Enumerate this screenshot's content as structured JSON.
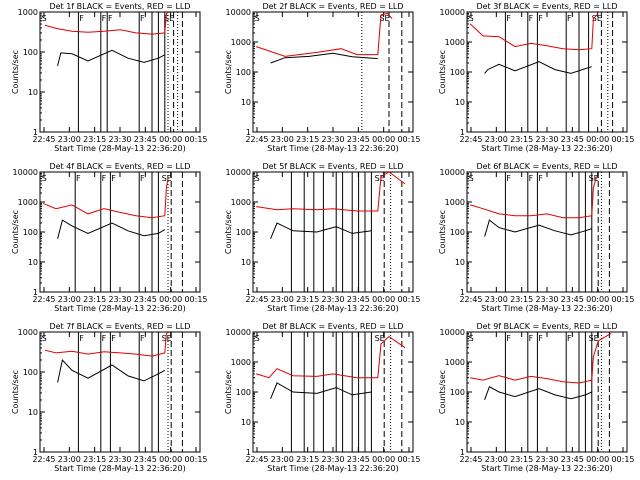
{
  "colors": {
    "events": "#000000",
    "lld": "#e00000",
    "frame": "#000000"
  },
  "chart_data": {
    "type": "line",
    "scale": "log",
    "ylim": [
      1,
      10000
    ],
    "y_ticks": [
      1,
      10,
      100,
      1000,
      10000
    ],
    "y_tick_labels": [
      "1",
      "10",
      "100",
      "1000",
      "10000"
    ],
    "x_tick_labels": [
      "22:45",
      "23:00",
      "23:15",
      "23:30",
      "23:45",
      "00:00",
      "00:15"
    ],
    "ylabel": "Counts/sec",
    "xlabel": "Start Time (28-May-13 22:36:20)",
    "panels": [
      {
        "title": "Det 1f BLACK = Events, RED = LLD",
        "ylim_top": 1000,
        "y_tick_labels": [
          "1",
          "10",
          "100",
          "1000"
        ],
        "markers": [
          "S",
          "F",
          "F",
          "F",
          "F",
          "SE"
        ],
        "solid_lines": [
          0.24,
          0.38,
          0.42,
          0.62,
          0.7,
          0.74,
          0.78
        ],
        "dashed_lines": [
          0.835,
          0.89
        ],
        "dotted_lines": [
          0.8,
          0.86
        ],
        "lld": [
          [
            0.03,
            470
          ],
          [
            0.1,
            390
          ],
          [
            0.2,
            330
          ],
          [
            0.3,
            310
          ],
          [
            0.4,
            330
          ],
          [
            0.5,
            360
          ],
          [
            0.6,
            300
          ],
          [
            0.7,
            280
          ],
          [
            0.78,
            300
          ],
          [
            0.79,
            900
          ],
          [
            0.8,
            1000
          ]
        ],
        "events": [
          [
            0.11,
            45
          ],
          [
            0.13,
            95
          ],
          [
            0.2,
            90
          ],
          [
            0.3,
            60
          ],
          [
            0.45,
            110
          ],
          [
            0.55,
            70
          ],
          [
            0.65,
            55
          ],
          [
            0.74,
            70
          ],
          [
            0.78,
            85
          ]
        ]
      },
      {
        "title": "Det 2f BLACK = Events, RED = LLD",
        "ylim_top": 10000,
        "y_tick_labels": [
          "1",
          "10",
          "100",
          "1000",
          "10000"
        ],
        "markers": [
          "S",
          "SE"
        ],
        "solid_lines": [],
        "dashed_lines": [
          0.85,
          0.93
        ],
        "dotted_lines": [
          0.68
        ],
        "lld": [
          [
            0.02,
            700
          ],
          [
            0.2,
            330
          ],
          [
            0.4,
            450
          ],
          [
            0.55,
            600
          ],
          [
            0.65,
            380
          ],
          [
            0.78,
            380
          ],
          [
            0.8,
            8000
          ],
          [
            0.84,
            9000
          ],
          [
            0.87,
            6000
          ]
        ],
        "events": [
          [
            0.11,
            200
          ],
          [
            0.2,
            300
          ],
          [
            0.35,
            330
          ],
          [
            0.5,
            420
          ],
          [
            0.62,
            320
          ],
          [
            0.78,
            280
          ]
        ]
      },
      {
        "title": "Det 3f BLACK = Events, RED = LLD",
        "ylim_top": 10000,
        "y_tick_labels": [
          "1",
          "10",
          "100",
          "1000",
          "10000"
        ],
        "markers": [
          "S",
          "F",
          "F",
          "F",
          "F",
          "SE"
        ],
        "solid_lines": [
          0.24,
          0.38,
          0.44,
          0.62,
          0.7,
          0.76
        ],
        "dashed_lines": [
          0.84,
          0.91
        ],
        "dotted_lines": [
          0.88
        ],
        "lld": [
          [
            0.02,
            4000
          ],
          [
            0.1,
            1600
          ],
          [
            0.2,
            1500
          ],
          [
            0.3,
            700
          ],
          [
            0.4,
            900
          ],
          [
            0.5,
            750
          ],
          [
            0.6,
            600
          ],
          [
            0.7,
            550
          ],
          [
            0.78,
            600
          ],
          [
            0.79,
            6000
          ],
          [
            0.82,
            9000
          ]
        ],
        "events": [
          [
            0.11,
            90
          ],
          [
            0.13,
            120
          ],
          [
            0.2,
            180
          ],
          [
            0.3,
            110
          ],
          [
            0.45,
            220
          ],
          [
            0.55,
            120
          ],
          [
            0.65,
            90
          ],
          [
            0.74,
            130
          ],
          [
            0.78,
            150
          ]
        ]
      },
      {
        "title": "Det 4f BLACK = Events, RED = LLD",
        "ylim_top": 10000,
        "y_tick_labels": [
          "1",
          "10",
          "100",
          "1000",
          "10000"
        ],
        "markers": [
          "S",
          "F",
          "F",
          "F",
          "F",
          "SE"
        ],
        "solid_lines": [
          0.22,
          0.38,
          0.44,
          0.62,
          0.7,
          0.74
        ],
        "dashed_lines": [
          0.82,
          0.89
        ],
        "dotted_lines": [
          0.8
        ],
        "lld": [
          [
            0.02,
            900
          ],
          [
            0.1,
            600
          ],
          [
            0.2,
            800
          ],
          [
            0.3,
            400
          ],
          [
            0.4,
            600
          ],
          [
            0.5,
            450
          ],
          [
            0.6,
            350
          ],
          [
            0.7,
            300
          ],
          [
            0.78,
            350
          ],
          [
            0.79,
            3000
          ],
          [
            0.8,
            6000
          ]
        ],
        "events": [
          [
            0.11,
            60
          ],
          [
            0.14,
            250
          ],
          [
            0.2,
            160
          ],
          [
            0.3,
            90
          ],
          [
            0.45,
            200
          ],
          [
            0.55,
            110
          ],
          [
            0.65,
            75
          ],
          [
            0.74,
            90
          ],
          [
            0.78,
            120
          ]
        ]
      },
      {
        "title": "Det 5f BLACK = Events, RED = LLD",
        "ylim_top": 10000,
        "y_tick_labels": [
          "1",
          "10",
          "100",
          "1000",
          "10000"
        ],
        "markers": [
          "S",
          "SE"
        ],
        "solid_lines": [
          0.24,
          0.32,
          0.38,
          0.44,
          0.52,
          0.56,
          0.62,
          0.66,
          0.7,
          0.74
        ],
        "dashed_lines": [
          0.82,
          0.93
        ],
        "dotted_lines": [
          0.86
        ],
        "lld": [
          [
            0.02,
            700
          ],
          [
            0.15,
            550
          ],
          [
            0.25,
            600
          ],
          [
            0.4,
            550
          ],
          [
            0.5,
            600
          ],
          [
            0.65,
            500
          ],
          [
            0.78,
            500
          ],
          [
            0.8,
            7000
          ],
          [
            0.85,
            10000
          ],
          [
            0.95,
            4000
          ]
        ],
        "events": [
          [
            0.11,
            60
          ],
          [
            0.15,
            200
          ],
          [
            0.25,
            110
          ],
          [
            0.4,
            100
          ],
          [
            0.52,
            150
          ],
          [
            0.62,
            90
          ],
          [
            0.74,
            110
          ]
        ]
      },
      {
        "title": "Det 6f BLACK = Events, RED = LLD",
        "ylim_top": 10000,
        "y_tick_labels": [
          "1",
          "10",
          "100",
          "1000",
          "10000"
        ],
        "markers": [
          "S",
          "F",
          "F",
          "F",
          "SE"
        ],
        "solid_lines": [
          0.24,
          0.38,
          0.44,
          0.62,
          0.7,
          0.74,
          0.78
        ],
        "dashed_lines": [
          0.82,
          0.89
        ],
        "dotted_lines": [
          0.84
        ],
        "lld": [
          [
            0.02,
            800
          ],
          [
            0.1,
            600
          ],
          [
            0.2,
            400
          ],
          [
            0.3,
            350
          ],
          [
            0.4,
            350
          ],
          [
            0.5,
            400
          ],
          [
            0.6,
            300
          ],
          [
            0.7,
            300
          ],
          [
            0.78,
            350
          ],
          [
            0.79,
            3000
          ],
          [
            0.81,
            7000
          ]
        ],
        "events": [
          [
            0.11,
            70
          ],
          [
            0.14,
            250
          ],
          [
            0.2,
            140
          ],
          [
            0.3,
            100
          ],
          [
            0.45,
            170
          ],
          [
            0.55,
            110
          ],
          [
            0.65,
            80
          ],
          [
            0.74,
            110
          ],
          [
            0.78,
            130
          ]
        ]
      },
      {
        "title": "Det 7f BLACK = Events, RED = LLD",
        "ylim_top": 1000,
        "y_tick_labels": [
          "1",
          "10",
          "100",
          "1000"
        ],
        "markers": [
          "S",
          "F",
          "F",
          "F",
          "F",
          "SE"
        ],
        "solid_lines": [
          0.24,
          0.38,
          0.44,
          0.62,
          0.7,
          0.74
        ],
        "dashed_lines": [
          0.82,
          0.89
        ],
        "dotted_lines": [
          0.8
        ],
        "lld": [
          [
            0.03,
            350
          ],
          [
            0.1,
            300
          ],
          [
            0.2,
            330
          ],
          [
            0.3,
            280
          ],
          [
            0.4,
            320
          ],
          [
            0.5,
            300
          ],
          [
            0.6,
            280
          ],
          [
            0.7,
            250
          ],
          [
            0.78,
            300
          ],
          [
            0.79,
            900
          ],
          [
            0.8,
            1000
          ]
        ],
        "events": [
          [
            0.11,
            55
          ],
          [
            0.14,
            200
          ],
          [
            0.2,
            110
          ],
          [
            0.3,
            70
          ],
          [
            0.45,
            150
          ],
          [
            0.55,
            80
          ],
          [
            0.65,
            60
          ],
          [
            0.74,
            90
          ],
          [
            0.78,
            110
          ]
        ]
      },
      {
        "title": "Det 8f BLACK = Events, RED = LLD",
        "ylim_top": 10000,
        "y_tick_labels": [
          "1",
          "10",
          "100",
          "1000",
          "10000"
        ],
        "markers": [
          "S",
          "SE"
        ],
        "solid_lines": [
          0.24,
          0.32,
          0.38,
          0.44,
          0.52,
          0.56,
          0.62,
          0.66,
          0.7,
          0.74
        ],
        "dashed_lines": [
          0.82,
          0.93
        ],
        "dotted_lines": [
          0.86
        ],
        "lld": [
          [
            0.02,
            400
          ],
          [
            0.1,
            300
          ],
          [
            0.15,
            600
          ],
          [
            0.25,
            350
          ],
          [
            0.4,
            330
          ],
          [
            0.5,
            400
          ],
          [
            0.65,
            300
          ],
          [
            0.78,
            300
          ],
          [
            0.8,
            4000
          ],
          [
            0.85,
            7000
          ],
          [
            0.95,
            3000
          ]
        ],
        "events": [
          [
            0.11,
            60
          ],
          [
            0.15,
            200
          ],
          [
            0.25,
            100
          ],
          [
            0.4,
            90
          ],
          [
            0.52,
            140
          ],
          [
            0.62,
            80
          ],
          [
            0.74,
            100
          ]
        ]
      },
      {
        "title": "Det 9f BLACK = Events, RED = LLD",
        "ylim_top": 10000,
        "y_tick_labels": [
          "1",
          "10",
          "100",
          "1000",
          "10000"
        ],
        "markers": [
          "S",
          "F",
          "F",
          "F",
          "F",
          "SE"
        ],
        "solid_lines": [
          0.24,
          0.38,
          0.44,
          0.62,
          0.7,
          0.74,
          0.78
        ],
        "dashed_lines": [
          0.82,
          0.89
        ],
        "dotted_lines": [
          0.84
        ],
        "lld": [
          [
            0.02,
            300
          ],
          [
            0.1,
            250
          ],
          [
            0.2,
            350
          ],
          [
            0.3,
            250
          ],
          [
            0.4,
            330
          ],
          [
            0.5,
            280
          ],
          [
            0.6,
            220
          ],
          [
            0.7,
            200
          ],
          [
            0.78,
            250
          ],
          [
            0.79,
            1500
          ],
          [
            0.82,
            5000
          ],
          [
            0.9,
            9000
          ]
        ],
        "events": [
          [
            0.11,
            55
          ],
          [
            0.14,
            150
          ],
          [
            0.2,
            100
          ],
          [
            0.3,
            70
          ],
          [
            0.45,
            130
          ],
          [
            0.55,
            80
          ],
          [
            0.65,
            60
          ],
          [
            0.74,
            80
          ],
          [
            0.78,
            100
          ]
        ]
      }
    ]
  }
}
